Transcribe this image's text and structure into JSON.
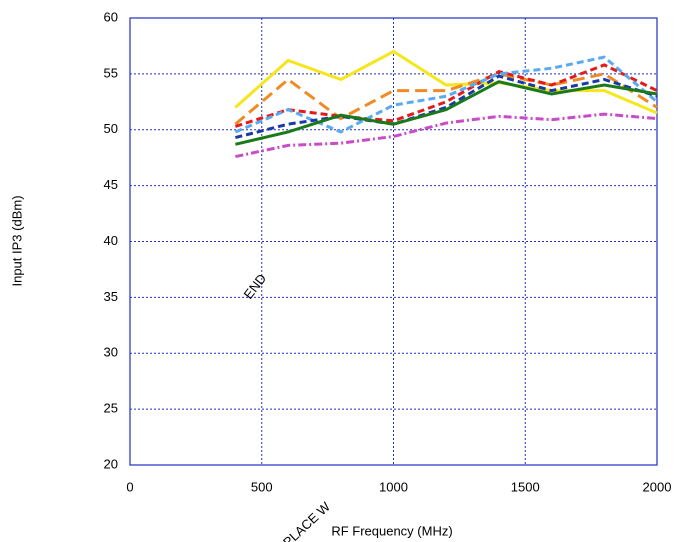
{
  "chart_data": {
    "type": "line",
    "x_label": "RF Frequency (MHz)",
    "y_label": "Input IP3 (dBm)",
    "x": [
      400,
      600,
      800,
      1000,
      1200,
      1400,
      1600,
      1800,
      2000
    ],
    "series": [
      {
        "color": "#f5e61e",
        "dash": "solid",
        "values": [
          52,
          56.2,
          54.5,
          57,
          54,
          54.2,
          53.5,
          53.5,
          51.5
        ]
      },
      {
        "color": "#f08a24",
        "dash": "long",
        "values": [
          50.5,
          54.5,
          51,
          53.5,
          53.5,
          55,
          54,
          55,
          52
        ]
      },
      {
        "color": "#e21b1b",
        "dash": "dash",
        "values": [
          50.3,
          51.8,
          51.2,
          50.8,
          52.5,
          55.2,
          54,
          55.8,
          53.5
        ]
      },
      {
        "color": "#5aaaf0",
        "dash": "dash",
        "values": [
          49.8,
          51.8,
          49.8,
          52.2,
          53,
          55,
          55.5,
          56.5,
          52.5
        ]
      },
      {
        "color": "#1a3aa8",
        "dash": "dash",
        "values": [
          49.3,
          50.5,
          51.2,
          50.5,
          52,
          54.8,
          53.5,
          54.5,
          53
        ]
      },
      {
        "color": "#1a7a1a",
        "dash": "solid",
        "values": [
          48.7,
          49.8,
          51.3,
          50.5,
          51.8,
          54.3,
          53.2,
          54,
          53.2
        ]
      },
      {
        "color": "#c84cc8",
        "dash": "dashdot",
        "values": [
          47.6,
          48.6,
          48.8,
          49.4,
          50.6,
          51.2,
          50.9,
          51.4,
          51
        ]
      }
    ],
    "xlim": [
      0,
      2000
    ],
    "xticks": [
      0,
      500,
      1000,
      1500,
      2000
    ],
    "ylim": [
      20,
      60
    ],
    "yticks": [
      20,
      25,
      30,
      35,
      40,
      45,
      50,
      55,
      60
    ],
    "grid": true,
    "annotations": [
      "END",
      "REPLACE W"
    ]
  }
}
